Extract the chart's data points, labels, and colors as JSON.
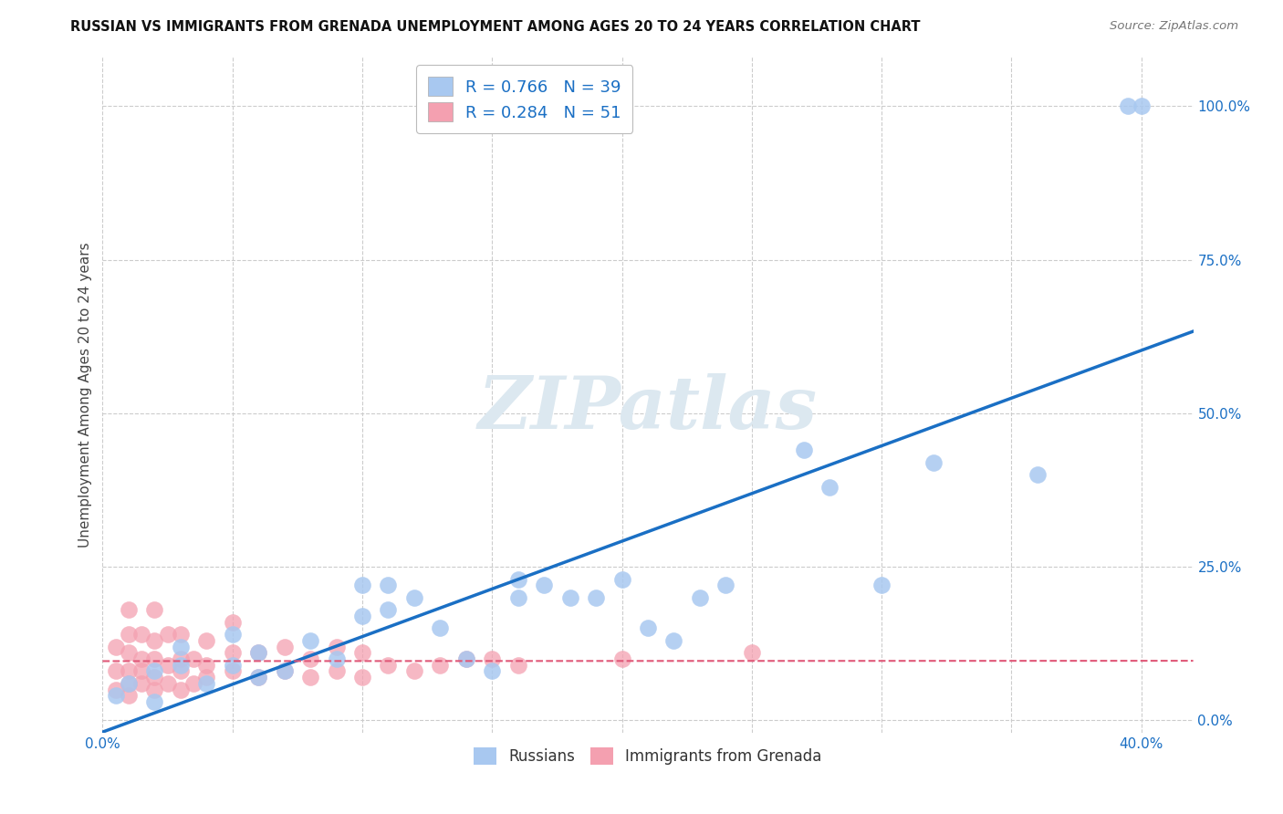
{
  "title": "RUSSIAN VS IMMIGRANTS FROM GRENADA UNEMPLOYMENT AMONG AGES 20 TO 24 YEARS CORRELATION CHART",
  "source": "Source: ZipAtlas.com",
  "ylabel": "Unemployment Among Ages 20 to 24 years",
  "xlim": [
    0.0,
    0.42
  ],
  "ylim": [
    -0.02,
    1.08
  ],
  "yticks": [
    0.0,
    0.25,
    0.5,
    0.75,
    1.0
  ],
  "ytick_labels": [
    "0.0%",
    "25.0%",
    "50.0%",
    "75.0%",
    "100.0%"
  ],
  "xticks": [
    0.0,
    0.05,
    0.1,
    0.15,
    0.2,
    0.25,
    0.3,
    0.35,
    0.4
  ],
  "xtick_labels": [
    "0.0%",
    "",
    "",
    "",
    "",
    "",
    "",
    "",
    "40.0%"
  ],
  "russians_R": 0.766,
  "russians_N": 39,
  "grenada_R": 0.284,
  "grenada_N": 51,
  "russians_color": "#a8c8f0",
  "grenada_color": "#f4a0b0",
  "russians_line_color": "#1a6fc4",
  "grenada_line_color": "#e05878",
  "watermark": "ZIPatlas",
  "watermark_color": "#dce8f0",
  "background_color": "#ffffff",
  "grid_color": "#cccccc",
  "legend_text_color": "#1a6fc4",
  "russians_x": [
    0.005,
    0.01,
    0.02,
    0.02,
    0.03,
    0.03,
    0.04,
    0.05,
    0.05,
    0.06,
    0.06,
    0.07,
    0.08,
    0.09,
    0.1,
    0.1,
    0.11,
    0.11,
    0.12,
    0.13,
    0.14,
    0.15,
    0.16,
    0.16,
    0.17,
    0.18,
    0.19,
    0.2,
    0.21,
    0.22,
    0.23,
    0.24,
    0.27,
    0.28,
    0.3,
    0.32,
    0.36,
    0.395,
    0.4
  ],
  "russians_y": [
    0.04,
    0.06,
    0.08,
    0.03,
    0.09,
    0.12,
    0.06,
    0.09,
    0.14,
    0.07,
    0.11,
    0.08,
    0.13,
    0.1,
    0.22,
    0.17,
    0.18,
    0.22,
    0.2,
    0.15,
    0.1,
    0.08,
    0.23,
    0.2,
    0.22,
    0.2,
    0.2,
    0.23,
    0.15,
    0.13,
    0.2,
    0.22,
    0.44,
    0.38,
    0.22,
    0.42,
    0.4,
    1.0,
    1.0
  ],
  "grenada_x": [
    0.005,
    0.005,
    0.005,
    0.01,
    0.01,
    0.01,
    0.01,
    0.01,
    0.01,
    0.015,
    0.015,
    0.015,
    0.015,
    0.02,
    0.02,
    0.02,
    0.02,
    0.02,
    0.025,
    0.025,
    0.025,
    0.03,
    0.03,
    0.03,
    0.03,
    0.035,
    0.035,
    0.04,
    0.04,
    0.04,
    0.05,
    0.05,
    0.05,
    0.06,
    0.06,
    0.07,
    0.07,
    0.08,
    0.08,
    0.09,
    0.09,
    0.1,
    0.1,
    0.11,
    0.12,
    0.13,
    0.14,
    0.15,
    0.16,
    0.2,
    0.25
  ],
  "grenada_y": [
    0.05,
    0.08,
    0.12,
    0.04,
    0.06,
    0.08,
    0.11,
    0.14,
    0.18,
    0.06,
    0.08,
    0.1,
    0.14,
    0.05,
    0.07,
    0.1,
    0.13,
    0.18,
    0.06,
    0.09,
    0.14,
    0.05,
    0.08,
    0.1,
    0.14,
    0.06,
    0.1,
    0.07,
    0.09,
    0.13,
    0.08,
    0.11,
    0.16,
    0.07,
    0.11,
    0.08,
    0.12,
    0.07,
    0.1,
    0.08,
    0.12,
    0.07,
    0.11,
    0.09,
    0.08,
    0.09,
    0.1,
    0.1,
    0.09,
    0.1,
    0.11
  ]
}
